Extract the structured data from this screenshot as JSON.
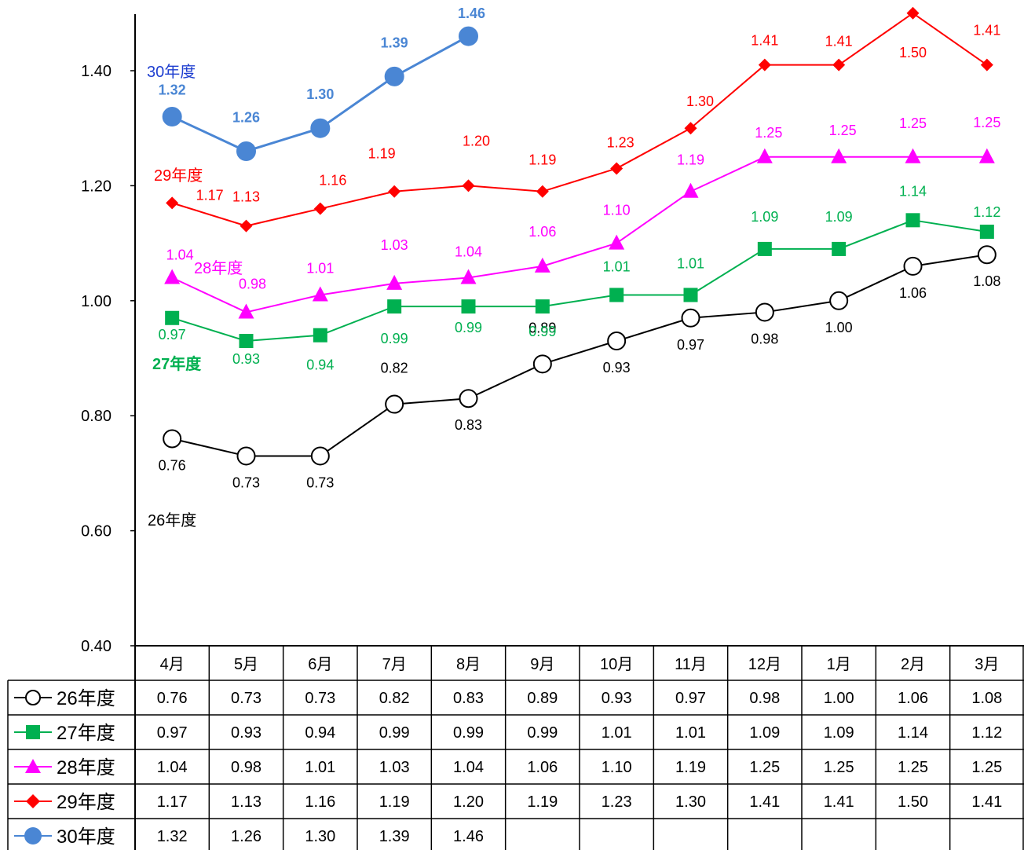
{
  "chart_data": {
    "type": "line",
    "categories": [
      "4月",
      "5月",
      "6月",
      "7月",
      "8月",
      "9月",
      "10月",
      "11月",
      "12月",
      "1月",
      "2月",
      "3月"
    ],
    "ylim": [
      0.4,
      1.5
    ],
    "yticks": [
      "0.40",
      "0.60",
      "0.80",
      "1.00",
      "1.20",
      "1.40"
    ],
    "grid": false,
    "legend": "data-table-left",
    "series": [
      {
        "name": "26年度",
        "label": "26年度",
        "color": "#000000",
        "marker": "circle-open",
        "values": [
          0.76,
          0.73,
          0.73,
          0.82,
          0.83,
          0.89,
          0.93,
          0.97,
          0.98,
          1.0,
          1.06,
          1.08
        ]
      },
      {
        "name": "27年度",
        "label": "27年度",
        "color": "#00b050",
        "marker": "square",
        "values": [
          0.97,
          0.93,
          0.94,
          0.99,
          0.99,
          0.99,
          1.01,
          1.01,
          1.09,
          1.09,
          1.14,
          1.12
        ]
      },
      {
        "name": "28年度",
        "label": "28年度",
        "color": "#ff00ff",
        "marker": "triangle",
        "values": [
          1.04,
          0.98,
          1.01,
          1.03,
          1.04,
          1.06,
          1.1,
          1.19,
          1.25,
          1.25,
          1.25,
          1.25
        ]
      },
      {
        "name": "29年度",
        "label": "29年度",
        "color": "#ff0000",
        "marker": "diamond",
        "values": [
          1.17,
          1.13,
          1.16,
          1.19,
          1.2,
          1.19,
          1.23,
          1.3,
          1.41,
          1.41,
          1.5,
          1.41
        ]
      },
      {
        "name": "30年度",
        "label": "30年度",
        "color": "#4a86d4",
        "marker": "circle",
        "values": [
          1.32,
          1.26,
          1.3,
          1.39,
          1.46,
          null,
          null,
          null,
          null,
          null,
          null,
          null
        ]
      }
    ],
    "table_rows": [
      {
        "name": "26年度",
        "cells": [
          "0.76",
          "0.73",
          "0.73",
          "0.82",
          "0.83",
          "0.89",
          "0.93",
          "0.97",
          "0.98",
          "1.00",
          "1.06",
          "1.08"
        ]
      },
      {
        "name": "27年度",
        "cells": [
          "0.97",
          "0.93",
          "0.94",
          "0.99",
          "0.99",
          "0.99",
          "1.01",
          "1.01",
          "1.09",
          "1.09",
          "1.14",
          "1.12"
        ]
      },
      {
        "name": "28年度",
        "cells": [
          "1.04",
          "0.98",
          "1.01",
          "1.03",
          "1.04",
          "1.06",
          "1.10",
          "1.19",
          "1.25",
          "1.25",
          "1.25",
          "1.25"
        ]
      },
      {
        "name": "29年度",
        "cells": [
          "1.17",
          "1.13",
          "1.16",
          "1.19",
          "1.20",
          "1.19",
          "1.23",
          "1.30",
          "1.41",
          "1.41",
          "1.50",
          "1.41"
        ]
      },
      {
        "name": "30年度",
        "cells": [
          "1.32",
          "1.26",
          "1.30",
          "1.39",
          "1.46",
          "",
          "",
          "",
          "",
          "",
          "",
          ""
        ]
      }
    ]
  }
}
